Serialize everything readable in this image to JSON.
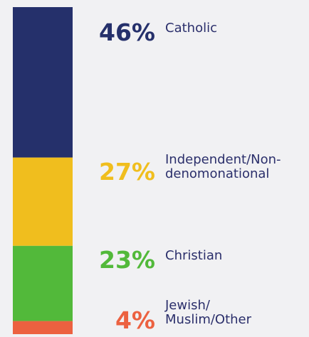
{
  "chart_data": {
    "type": "bar",
    "stacked": true,
    "orientation": "vertical",
    "categories": [
      "Catholic",
      "Independent/Non-denomonational",
      "Christian",
      "Jewish/Muslim/Other"
    ],
    "values": [
      46,
      27,
      23,
      4
    ],
    "value_labels": [
      "46%",
      "27%",
      "23%",
      "4%"
    ],
    "label_lines": [
      [
        "Catholic"
      ],
      [
        "Independent/Non-",
        "denomonational"
      ],
      [
        "Christian"
      ],
      [
        "Jewish/",
        "Muslim/Other"
      ]
    ],
    "colors": [
      "#25306b",
      "#f0be1e",
      "#52b93a",
      "#ec6140"
    ],
    "label_color": "#2b2f6b",
    "ylim": [
      0,
      100
    ],
    "title": "",
    "xlabel": "",
    "ylabel": "",
    "grid": false,
    "legend": "none"
  }
}
